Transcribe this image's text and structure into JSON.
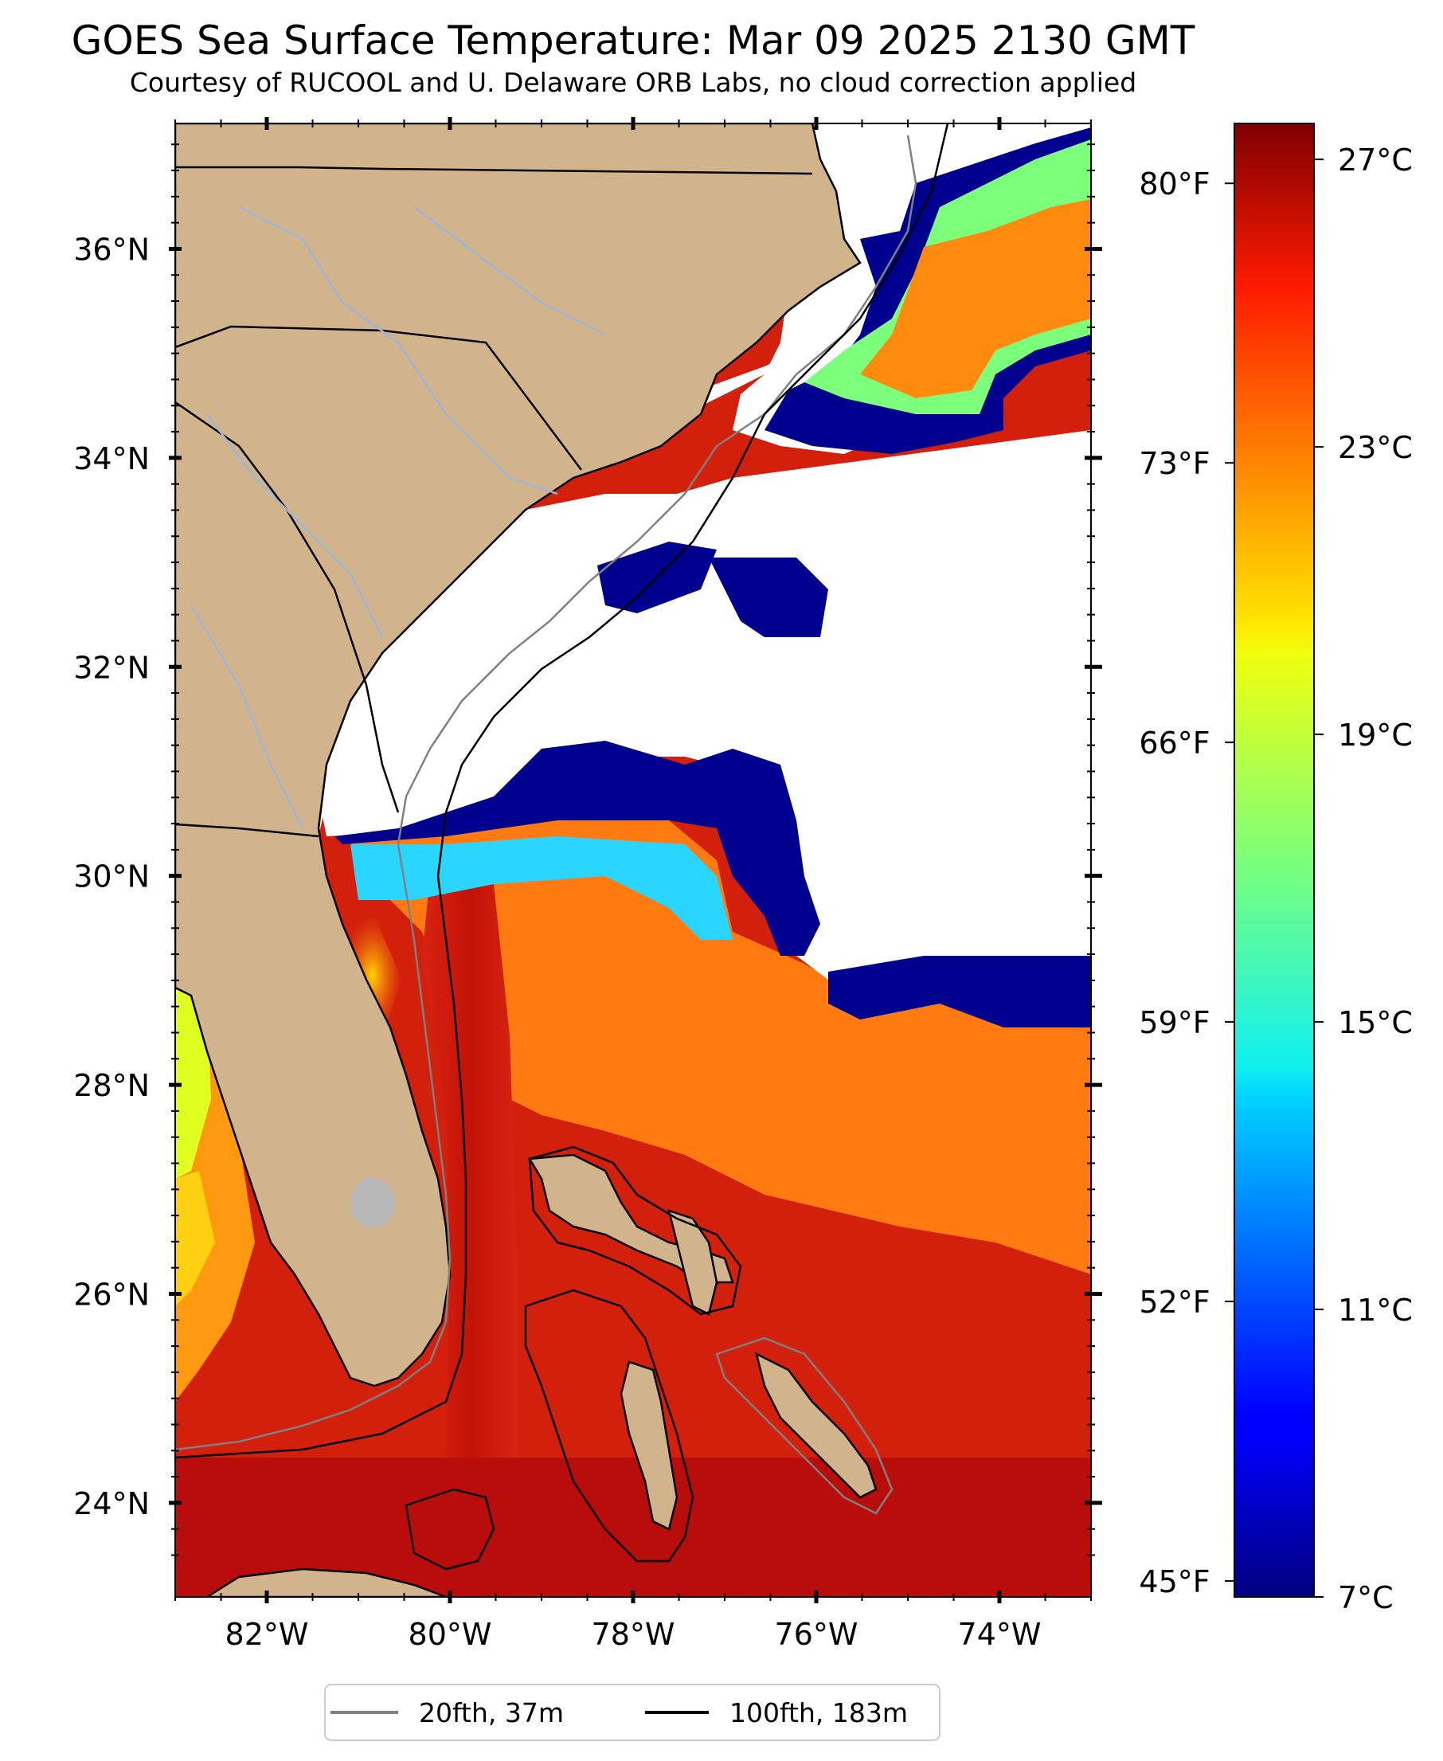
{
  "title": "GOES Sea Surface Temperature: Mar 09 2025 2130 GMT",
  "subtitle": "Courtesy of RUCOOL and U. Delaware ORB Labs, no cloud correction applied",
  "map": {
    "lon_range": [
      -83,
      -73
    ],
    "lat_range": [
      23.1,
      37.2
    ],
    "lon_ticks": [
      -82,
      -80,
      -78,
      -76,
      -74
    ],
    "lon_labels": [
      "82°W",
      "80°W",
      "78°W",
      "76°W",
      "74°W"
    ],
    "lat_ticks": [
      36,
      34,
      32,
      30,
      28,
      26,
      24
    ],
    "lat_labels": [
      "36°N",
      "34°N",
      "32°N",
      "30°N",
      "28°N",
      "26°N",
      "24°N"
    ],
    "right_axis_labels": [
      "80°F",
      "73°F",
      "66°F",
      "59°F",
      "52°F",
      "45°F"
    ],
    "colors": {
      "land": "#d2b48c",
      "cloud": "#ffffff",
      "warm_water": "#d21a0a",
      "gulf_stream": "#b80a0a",
      "shelf_orange": "#ff7a10",
      "cold_water": "#00008e"
    }
  },
  "colorbar": {
    "vmin_c": 7,
    "vmax_c": 27.5,
    "cmap": "jet",
    "celsius_ticks": [
      27,
      23,
      19,
      15,
      11,
      7
    ],
    "celsius_labels": [
      "27°C",
      "23°C",
      "19°C",
      "15°C",
      "11°C",
      "7°C"
    ],
    "fahrenheit_ticks": [
      80,
      73,
      66,
      59,
      52,
      45
    ],
    "fahrenheit_labels": [
      "80°F",
      "73°F",
      "66°F",
      "59°F",
      "52°F",
      "45°F"
    ]
  },
  "legend": {
    "items": [
      {
        "label": "20fth, 37m",
        "color": "#808080"
      },
      {
        "label": "100fth, 183m",
        "color": "#000000"
      }
    ]
  }
}
